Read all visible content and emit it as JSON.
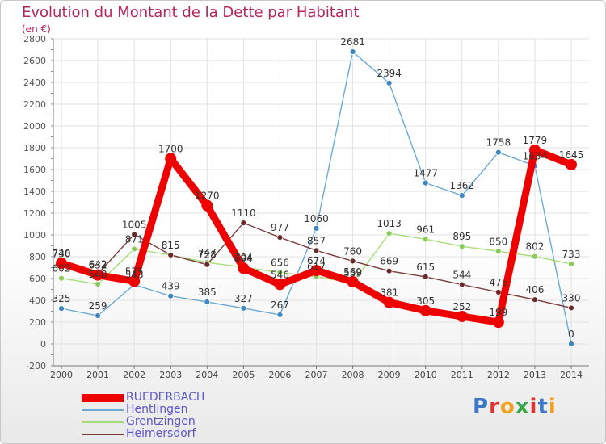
{
  "title": "Evolution du Montant de la Dette par Habitant",
  "subtitle": "(en €)",
  "logo_text": "Proxiti",
  "chart_data": {
    "type": "line",
    "title": "Evolution du Montant de la Dette par Habitant",
    "ylabel": "(en €)",
    "ylim": [
      -200,
      2800
    ],
    "yticks": [
      -200,
      0,
      200,
      400,
      600,
      800,
      1000,
      1200,
      1400,
      1600,
      1800,
      2000,
      2200,
      2400,
      2600,
      2800
    ],
    "grid": true,
    "x": [
      "2000",
      "2001",
      "2002",
      "2003",
      "2004",
      "2005",
      "2006",
      "2007",
      "2008",
      "2009",
      "2010",
      "2011",
      "2012",
      "2013",
      "2014"
    ],
    "series": [
      {
        "name": "Hentlingen",
        "color": "#6aa9d6",
        "dot": "#3d86c2",
        "values": [
          325,
          259,
          543,
          439,
          385,
          327,
          267,
          1060,
          2681,
          2394,
          1477,
          1362,
          1758,
          1634,
          0
        ]
      },
      {
        "name": "Grentzingen",
        "color": "#a6df78",
        "dot": "#86cc55",
        "values": [
          602,
          548,
          871,
          815,
          747,
          704,
          656,
          617,
          559,
          1013,
          961,
          895,
          850,
          802,
          733
        ]
      },
      {
        "name": "Heimersdorf",
        "color": "#7a3a3a",
        "dot": "#6b2a2a",
        "values": [
          736,
          642,
          1005,
          815,
          728,
          1110,
          977,
          857,
          760,
          669,
          615,
          544,
          475,
          406,
          330
        ]
      },
      {
        "name": "RUEDERBACH",
        "color": "#ee0000",
        "dot": "#ee0000",
        "main": true,
        "values": [
          740,
          632,
          575,
          1700,
          1270,
          694,
          546,
          674,
          569,
          381,
          305,
          252,
          199,
          1779,
          1645
        ]
      }
    ],
    "legend": [
      "RUEDERBACH",
      "Hentlingen",
      "Grentzingen",
      "Heimersdorf"
    ]
  }
}
